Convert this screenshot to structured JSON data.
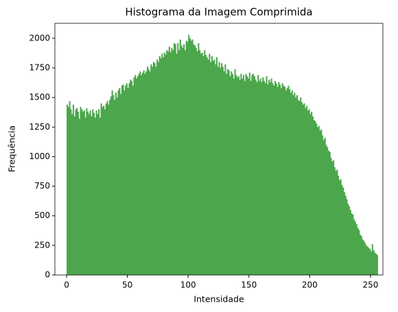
{
  "chart_data": {
    "type": "histogram",
    "title": "Histograma da Imagem Comprimida",
    "x_label": "Intensidade",
    "y_label": "Frequência",
    "color": "#4ca64c",
    "xlim": [
      -9.6,
      260.2
    ],
    "xticks": [
      0,
      50,
      100,
      150,
      200,
      250
    ],
    "ylim": [
      0,
      2127
    ],
    "yticks": [
      0,
      250,
      500,
      750,
      1000,
      1250,
      1500,
      1750,
      2000
    ],
    "bins": [
      0,
      1,
      2,
      3,
      4,
      5,
      6,
      7,
      8,
      9,
      10,
      11,
      12,
      13,
      14,
      15,
      16,
      17,
      18,
      19,
      20,
      21,
      22,
      23,
      24,
      25,
      26,
      27,
      28,
      29,
      30,
      31,
      32,
      33,
      34,
      35,
      36,
      37,
      38,
      39,
      40,
      41,
      42,
      43,
      44,
      45,
      46,
      47,
      48,
      49,
      50,
      51,
      52,
      53,
      54,
      55,
      56,
      57,
      58,
      59,
      60,
      61,
      62,
      63,
      64,
      65,
      66,
      67,
      68,
      69,
      70,
      71,
      72,
      73,
      74,
      75,
      76,
      77,
      78,
      79,
      80,
      81,
      82,
      83,
      84,
      85,
      86,
      87,
      88,
      89,
      90,
      91,
      92,
      93,
      94,
      95,
      96,
      97,
      98,
      99,
      100,
      101,
      102,
      103,
      104,
      105,
      106,
      107,
      108,
      109,
      110,
      111,
      112,
      113,
      114,
      115,
      116,
      117,
      118,
      119,
      120,
      121,
      122,
      123,
      124,
      125,
      126,
      127,
      128,
      129,
      130,
      131,
      132,
      133,
      134,
      135,
      136,
      137,
      138,
      139,
      140,
      141,
      142,
      143,
      144,
      145,
      146,
      147,
      148,
      149,
      150,
      151,
      152,
      153,
      154,
      155,
      156,
      157,
      158,
      159,
      160,
      161,
      162,
      163,
      164,
      165,
      166,
      167,
      168,
      169,
      170,
      171,
      172,
      173,
      174,
      175,
      176,
      177,
      178,
      179,
      180,
      181,
      182,
      183,
      184,
      185,
      186,
      187,
      188,
      189,
      190,
      191,
      192,
      193,
      194,
      195,
      196,
      197,
      198,
      199,
      200,
      201,
      202,
      203,
      204,
      205,
      206,
      207,
      208,
      209,
      210,
      211,
      212,
      213,
      214,
      215,
      216,
      217,
      218,
      219,
      220,
      221,
      222,
      223,
      224,
      225,
      226,
      227,
      228,
      229,
      230,
      231,
      232,
      233,
      234,
      235,
      236,
      237,
      238,
      239,
      240,
      241,
      242,
      243,
      244,
      245,
      246,
      247,
      248,
      249,
      250,
      251,
      252,
      253,
      254,
      255,
      256
    ],
    "counts": [
      1440,
      1420,
      1470,
      1400,
      1360,
      1440,
      1340,
      1400,
      1410,
      1380,
      1320,
      1420,
      1400,
      1380,
      1390,
      1330,
      1410,
      1380,
      1360,
      1390,
      1340,
      1400,
      1370,
      1330,
      1390,
      1360,
      1400,
      1330,
      1450,
      1420,
      1430,
      1400,
      1450,
      1470,
      1440,
      1480,
      1510,
      1560,
      1520,
      1480,
      1540,
      1500,
      1560,
      1580,
      1530,
      1600,
      1610,
      1560,
      1600,
      1620,
      1580,
      1620,
      1650,
      1640,
      1600,
      1670,
      1690,
      1660,
      1680,
      1700,
      1720,
      1690,
      1710,
      1730,
      1700,
      1720,
      1760,
      1740,
      1720,
      1780,
      1760,
      1800,
      1790,
      1760,
      1820,
      1800,
      1850,
      1830,
      1870,
      1840,
      1880,
      1860,
      1900,
      1890,
      1930,
      1880,
      1920,
      1900,
      1960,
      1950,
      1870,
      1960,
      1900,
      1990,
      1940,
      1920,
      1950,
      1900,
      1980,
      1970,
      2030,
      2000,
      1980,
      1990,
      1950,
      1940,
      1920,
      1890,
      1960,
      1900,
      1870,
      1880,
      1850,
      1900,
      1860,
      1840,
      1820,
      1870,
      1800,
      1850,
      1810,
      1820,
      1780,
      1840,
      1760,
      1800,
      1750,
      1790,
      1760,
      1720,
      1780,
      1700,
      1740,
      1730,
      1680,
      1720,
      1700,
      1660,
      1740,
      1690,
      1670,
      1680,
      1650,
      1700,
      1660,
      1690,
      1640,
      1700,
      1680,
      1660,
      1710,
      1640,
      1690,
      1700,
      1680,
      1650,
      1630,
      1690,
      1640,
      1660,
      1630,
      1670,
      1640,
      1620,
      1680,
      1610,
      1650,
      1630,
      1660,
      1620,
      1600,
      1640,
      1620,
      1590,
      1630,
      1610,
      1580,
      1620,
      1600,
      1590,
      1560,
      1580,
      1600,
      1570,
      1540,
      1560,
      1520,
      1540,
      1500,
      1520,
      1480,
      1470,
      1500,
      1460,
      1440,
      1450,
      1410,
      1430,
      1390,
      1400,
      1360,
      1380,
      1340,
      1310,
      1300,
      1280,
      1250,
      1260,
      1220,
      1230,
      1180,
      1140,
      1160,
      1100,
      1080,
      1050,
      1040,
      990,
      960,
      970,
      910,
      880,
      890,
      840,
      800,
      810,
      760,
      740,
      700,
      670,
      640,
      600,
      580,
      550,
      520,
      510,
      470,
      450,
      430,
      400,
      380,
      340,
      330,
      300,
      290,
      270,
      250,
      240,
      230,
      220,
      200,
      260,
      210,
      190,
      180,
      170
    ]
  }
}
